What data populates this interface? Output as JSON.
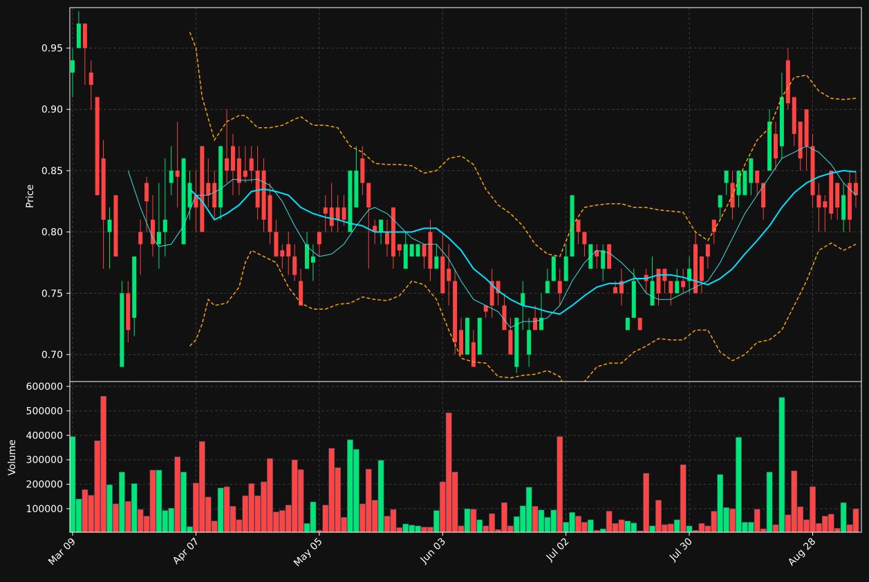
{
  "chart_data": {
    "type": "candlestick",
    "ylabel": "Price",
    "volume_ylabel": "Volume",
    "grid": true,
    "up_color": "#00e676",
    "down_color": "#ff4444",
    "xlim": [
      -0.45,
      127.9
    ],
    "ylim": [
      0.678,
      0.983
    ],
    "yticks": [
      {
        "value": 0.7,
        "label": "0.70"
      },
      0.75,
      {
        "value": 0.8,
        "label": "0.80"
      },
      0.85,
      {
        "value": 0.9,
        "label": "0.90"
      },
      0.95
    ],
    "volume_ylim": [
      4000,
      617000
    ],
    "volume_yticks": [
      100000,
      200000,
      300000,
      400000,
      500000,
      600000
    ],
    "categories": [
      "Mar 09",
      null,
      null,
      null,
      null,
      null,
      null,
      null,
      null,
      null,
      null,
      null,
      null,
      null,
      null,
      null,
      null,
      null,
      null,
      null,
      "Apr 07",
      null,
      null,
      null,
      null,
      null,
      null,
      null,
      null,
      null,
      null,
      null,
      null,
      null,
      null,
      null,
      null,
      null,
      null,
      null,
      "May 05",
      null,
      null,
      null,
      null,
      null,
      null,
      null,
      null,
      null,
      null,
      null,
      null,
      null,
      null,
      null,
      null,
      null,
      null,
      null,
      "Jun 03",
      null,
      null,
      null,
      null,
      null,
      null,
      null,
      null,
      null,
      null,
      null,
      null,
      null,
      null,
      null,
      null,
      null,
      null,
      null,
      "Jul 02",
      null,
      null,
      null,
      null,
      null,
      null,
      null,
      null,
      null,
      null,
      null,
      null,
      null,
      null,
      null,
      null,
      null,
      null,
      null,
      "Jul 30",
      null,
      null,
      null,
      null,
      null,
      null,
      null,
      null,
      null,
      null,
      null,
      null,
      null,
      null,
      null,
      null,
      null,
      null,
      null,
      "Aug 28",
      null,
      null,
      null,
      null,
      null,
      null,
      null
    ],
    "open": [
      0.93,
      0.95,
      0.97,
      0.93,
      0.91,
      0.86,
      0.8,
      0.83,
      0.69,
      0.75,
      0.73,
      0.8,
      0.84,
      0.81,
      0.79,
      0.8,
      0.84,
      0.85,
      0.79,
      0.82,
      0.83,
      0.87,
      0.84,
      0.84,
      0.82,
      0.86,
      0.87,
      0.86,
      0.85,
      0.86,
      0.85,
      0.85,
      0.83,
      0.8,
      0.785,
      0.79,
      0.78,
      0.76,
      0.77,
      0.775,
      0.8,
      0.82,
      0.82,
      0.82,
      0.82,
      0.8,
      0.82,
      0.86,
      0.84,
      0.805,
      0.8,
      0.8,
      0.82,
      0.79,
      0.77,
      0.78,
      0.78,
      0.79,
      0.8,
      0.77,
      0.78,
      0.77,
      0.76,
      0.72,
      0.7,
      0.71,
      0.7,
      0.74,
      0.76,
      0.76,
      0.74,
      0.72,
      0.69,
      0.74,
      0.7,
      0.73,
      0.72,
      0.75,
      0.76,
      0.76,
      0.76,
      0.78,
      0.81,
      0.8,
      0.77,
      0.785,
      0.77,
      0.79,
      0.755,
      0.76,
      0.72,
      0.73,
      0.73,
      0.765,
      0.74,
      0.77,
      0.77,
      0.76,
      0.75,
      0.76,
      0.76,
      0.79,
      0.78,
      0.79,
      0.81,
      0.82,
      0.84,
      0.84,
      0.83,
      0.83,
      0.84,
      0.85,
      0.84,
      0.85,
      0.88,
      0.87,
      0.94,
      0.91,
      0.89,
      0.9,
      0.87,
      0.83,
      0.825,
      0.85,
      0.84,
      0.81,
      0.84,
      0.84
    ],
    "high": [
      0.95,
      0.98,
      0.97,
      0.94,
      0.91,
      0.875,
      0.82,
      0.83,
      0.76,
      0.76,
      0.78,
      0.81,
      0.845,
      0.83,
      0.84,
      0.86,
      0.87,
      0.89,
      0.86,
      0.85,
      0.85,
      0.87,
      0.86,
      0.85,
      0.87,
      0.9,
      0.88,
      0.87,
      0.87,
      0.87,
      0.87,
      0.86,
      0.84,
      0.81,
      0.79,
      0.8,
      0.79,
      0.77,
      0.8,
      0.79,
      0.8,
      0.83,
      0.84,
      0.83,
      0.83,
      0.85,
      0.87,
      0.87,
      0.84,
      0.81,
      0.81,
      0.81,
      0.82,
      0.79,
      0.8,
      0.79,
      0.79,
      0.79,
      0.81,
      0.79,
      0.8,
      0.79,
      0.77,
      0.73,
      0.73,
      0.72,
      0.73,
      0.74,
      0.77,
      0.76,
      0.75,
      0.73,
      0.73,
      0.76,
      0.73,
      0.74,
      0.75,
      0.77,
      0.78,
      0.77,
      0.79,
      0.83,
      0.81,
      0.8,
      0.79,
      0.79,
      0.79,
      0.79,
      0.76,
      0.77,
      0.73,
      0.77,
      0.73,
      0.77,
      0.78,
      0.77,
      0.77,
      0.76,
      0.77,
      0.77,
      0.78,
      0.8,
      0.78,
      0.79,
      0.81,
      0.83,
      0.85,
      0.85,
      0.85,
      0.85,
      0.86,
      0.85,
      0.84,
      0.9,
      0.89,
      0.93,
      0.95,
      0.91,
      0.89,
      0.9,
      0.88,
      0.84,
      0.83,
      0.85,
      0.84,
      0.84,
      0.85,
      0.85
    ],
    "low": [
      0.91,
      0.95,
      0.92,
      0.9,
      0.83,
      0.77,
      0.77,
      0.78,
      0.69,
      0.71,
      0.715,
      0.765,
      0.8,
      0.78,
      0.77,
      0.78,
      0.83,
      0.82,
      0.79,
      0.81,
      0.8,
      0.8,
      0.82,
      0.81,
      0.81,
      0.84,
      0.83,
      0.83,
      0.84,
      0.84,
      0.81,
      0.8,
      0.79,
      0.78,
      0.77,
      0.765,
      0.76,
      0.74,
      0.77,
      0.76,
      0.78,
      0.8,
      0.8,
      0.8,
      0.805,
      0.8,
      0.82,
      0.83,
      0.77,
      0.79,
      0.79,
      0.78,
      0.77,
      0.78,
      0.77,
      0.78,
      0.78,
      0.77,
      0.76,
      0.77,
      0.75,
      0.74,
      0.7,
      0.7,
      0.7,
      0.69,
      0.7,
      0.73,
      0.73,
      0.74,
      0.72,
      0.7,
      0.685,
      0.72,
      0.69,
      0.72,
      0.72,
      0.75,
      0.76,
      0.74,
      0.76,
      0.78,
      0.79,
      0.78,
      0.77,
      0.77,
      0.76,
      0.77,
      0.75,
      0.74,
      0.72,
      0.73,
      0.72,
      0.75,
      0.74,
      0.74,
      0.75,
      0.74,
      0.75,
      0.75,
      0.75,
      0.75,
      0.75,
      0.77,
      0.79,
      0.81,
      0.83,
      0.81,
      0.82,
      0.83,
      0.83,
      0.83,
      0.81,
      0.85,
      0.85,
      0.86,
      0.9,
      0.87,
      0.85,
      0.85,
      0.82,
      0.8,
      0.8,
      0.81,
      0.81,
      0.8,
      0.8,
      0.82
    ],
    "close": [
      0.94,
      0.97,
      0.95,
      0.92,
      0.83,
      0.81,
      0.81,
      0.78,
      0.75,
      0.72,
      0.78,
      0.79,
      0.825,
      0.79,
      0.8,
      0.81,
      0.85,
      0.845,
      0.86,
      0.84,
      0.82,
      0.8,
      0.83,
      0.82,
      0.87,
      0.85,
      0.85,
      0.84,
      0.845,
      0.85,
      0.82,
      0.81,
      0.8,
      0.78,
      0.78,
      0.78,
      0.765,
      0.74,
      0.79,
      0.78,
      0.79,
      0.815,
      0.805,
      0.81,
      0.81,
      0.85,
      0.85,
      0.84,
      0.82,
      0.8,
      0.81,
      0.79,
      0.78,
      0.785,
      0.79,
      0.79,
      0.79,
      0.78,
      0.77,
      0.78,
      0.75,
      0.76,
      0.71,
      0.7,
      0.73,
      0.69,
      0.73,
      0.735,
      0.74,
      0.75,
      0.72,
      0.7,
      0.73,
      0.75,
      0.72,
      0.72,
      0.73,
      0.76,
      0.78,
      0.75,
      0.78,
      0.83,
      0.8,
      0.79,
      0.79,
      0.78,
      0.785,
      0.77,
      0.75,
      0.75,
      0.73,
      0.76,
      0.72,
      0.76,
      0.76,
      0.75,
      0.76,
      0.75,
      0.76,
      0.755,
      0.77,
      0.75,
      0.76,
      0.78,
      0.8,
      0.83,
      0.85,
      0.82,
      0.85,
      0.85,
      0.86,
      0.84,
      0.82,
      0.89,
      0.86,
      0.91,
      0.905,
      0.88,
      0.86,
      0.87,
      0.83,
      0.82,
      0.82,
      0.815,
      0.82,
      0.83,
      0.81,
      0.83
    ],
    "volume": [
      395000,
      140000,
      178000,
      155000,
      378000,
      560000,
      198000,
      120000,
      250000,
      130000,
      203000,
      97000,
      70000,
      258000,
      258000,
      93000,
      102000,
      312000,
      250000,
      27000,
      205000,
      375000,
      148000,
      50000,
      185000,
      190000,
      110000,
      55000,
      153000,
      203000,
      153000,
      210000,
      305000,
      87000,
      93000,
      115000,
      300000,
      260000,
      40000,
      128000,
      12000,
      115000,
      347000,
      268000,
      65000,
      382000,
      343000,
      120000,
      262000,
      135000,
      298000,
      70000,
      97000,
      23000,
      38000,
      33000,
      30000,
      25000,
      25000,
      93000,
      210000,
      492000,
      250000,
      30000,
      100000,
      98000,
      55000,
      30000,
      80000,
      15000,
      125000,
      30000,
      68000,
      112000,
      188000,
      110000,
      95000,
      65000,
      95000,
      395000,
      45000,
      85000,
      70000,
      45000,
      55000,
      12000,
      18000,
      90000,
      40000,
      55000,
      50000,
      42000,
      10000,
      245000,
      30000,
      135000,
      35000,
      38000,
      55000,
      280000,
      30000,
      12000,
      40000,
      30000,
      90000,
      240000,
      105000,
      100000,
      392000,
      45000,
      45000,
      98000,
      18000,
      250000,
      35000,
      555000,
      75000,
      255000,
      108000,
      55000,
      190000,
      40000,
      70000,
      78000,
      20000,
      125000,
      35000,
      100000
    ],
    "lines": [
      {
        "color": "#40e0e0",
        "linewidth": 1,
        "dashed": false,
        "x": [
          9,
          11,
          13,
          14,
          16,
          18,
          20,
          22,
          24,
          26,
          28,
          30,
          32,
          34,
          36,
          38,
          40,
          42,
          44,
          46,
          48,
          49,
          51,
          53,
          55,
          57,
          59,
          61,
          63,
          65,
          67,
          69,
          71,
          73,
          75,
          77,
          79,
          81,
          83,
          85,
          87,
          89,
          91,
          93,
          95,
          97,
          99,
          101,
          103,
          105,
          107,
          109,
          111,
          113,
          115,
          117,
          119,
          121,
          123,
          125,
          127
        ],
        "values": [
          0.85,
          0.82,
          0.795,
          0.788,
          0.79,
          0.805,
          0.83,
          0.83,
          0.835,
          0.843,
          0.842,
          0.843,
          0.838,
          0.825,
          0.805,
          0.788,
          0.78,
          0.782,
          0.79,
          0.805,
          0.818,
          0.82,
          0.815,
          0.805,
          0.795,
          0.79,
          0.79,
          0.778,
          0.76,
          0.745,
          0.74,
          0.735,
          0.722,
          0.727,
          0.727,
          0.73,
          0.74,
          0.76,
          0.775,
          0.785,
          0.783,
          0.775,
          0.765,
          0.75,
          0.745,
          0.745,
          0.75,
          0.755,
          0.76,
          0.775,
          0.795,
          0.815,
          0.83,
          0.845,
          0.86,
          0.865,
          0.87,
          0.865,
          0.855,
          0.84,
          0.83
        ]
      },
      {
        "color": "#00e5ff",
        "linewidth": 2,
        "dashed": false,
        "x": [
          19,
          21,
          23,
          25,
          27,
          29,
          31,
          33,
          35,
          37,
          39,
          41,
          43,
          45,
          47,
          49,
          51,
          53,
          55,
          57,
          59,
          61,
          63,
          65,
          67,
          69,
          71,
          73,
          75,
          77,
          79,
          81,
          83,
          85,
          87,
          89,
          91,
          93,
          95,
          97,
          99,
          101,
          103,
          105,
          107,
          109,
          111,
          113,
          115,
          117,
          119,
          121,
          123,
          125,
          127
        ],
        "values": [
          0.835,
          0.825,
          0.81,
          0.815,
          0.822,
          0.833,
          0.835,
          0.833,
          0.83,
          0.82,
          0.815,
          0.812,
          0.81,
          0.807,
          0.805,
          0.8,
          0.8,
          0.8,
          0.8,
          0.803,
          0.803,
          0.795,
          0.785,
          0.77,
          0.762,
          0.752,
          0.745,
          0.74,
          0.738,
          0.735,
          0.733,
          0.74,
          0.748,
          0.755,
          0.758,
          0.758,
          0.762,
          0.762,
          0.765,
          0.765,
          0.763,
          0.76,
          0.757,
          0.762,
          0.77,
          0.782,
          0.793,
          0.805,
          0.82,
          0.832,
          0.84,
          0.845,
          0.848,
          0.85,
          0.849
        ]
      },
      {
        "color": "#ffa500",
        "linewidth": 1.5,
        "dashed": true,
        "x": [
          19,
          20,
          21,
          23,
          25,
          27,
          28,
          30,
          32,
          34,
          36,
          37,
          39,
          41,
          43,
          45,
          47,
          49,
          51,
          53,
          55,
          57,
          59,
          61,
          63,
          65,
          67,
          69,
          71,
          73,
          75,
          77,
          79,
          81,
          83,
          85,
          87,
          89,
          91,
          93,
          95,
          97,
          99,
          101,
          103,
          105,
          107,
          109,
          111,
          113,
          115,
          117,
          119,
          121,
          123,
          125,
          127
        ],
        "values": [
          0.963,
          0.95,
          0.91,
          0.875,
          0.89,
          0.895,
          0.895,
          0.885,
          0.885,
          0.887,
          0.892,
          0.894,
          0.887,
          0.887,
          0.885,
          0.87,
          0.865,
          0.856,
          0.855,
          0.855,
          0.854,
          0.848,
          0.85,
          0.86,
          0.862,
          0.855,
          0.835,
          0.822,
          0.815,
          0.805,
          0.79,
          0.782,
          0.78,
          0.805,
          0.82,
          0.822,
          0.823,
          0.823,
          0.82,
          0.82,
          0.818,
          0.817,
          0.816,
          0.8,
          0.793,
          0.81,
          0.83,
          0.855,
          0.875,
          0.885,
          0.91,
          0.926,
          0.928,
          0.915,
          0.909,
          0.908,
          0.909
        ]
      },
      {
        "color": "#ffa500",
        "linewidth": 1.5,
        "dashed": true,
        "x": [
          19,
          20,
          21,
          22,
          23,
          25,
          27,
          28,
          29,
          31,
          33,
          35,
          37,
          39,
          41,
          43,
          45,
          47,
          49,
          51,
          53,
          55,
          57,
          59,
          61,
          63,
          65,
          67,
          69,
          71,
          73,
          75,
          77,
          79,
          80,
          81,
          83,
          85,
          87,
          89,
          91,
          93,
          95,
          97,
          99,
          101,
          103,
          105,
          107,
          109,
          111,
          113,
          115,
          117,
          119,
          121,
          123,
          125,
          127
        ],
        "values": [
          0.707,
          0.712,
          0.725,
          0.745,
          0.74,
          0.742,
          0.755,
          0.775,
          0.785,
          0.78,
          0.775,
          0.755,
          0.742,
          0.737,
          0.737,
          0.741,
          0.742,
          0.747,
          0.745,
          0.744,
          0.748,
          0.76,
          0.757,
          0.745,
          0.72,
          0.697,
          0.694,
          0.693,
          0.682,
          0.681,
          0.683,
          0.684,
          0.687,
          0.682,
          0.67,
          0.67,
          0.678,
          0.69,
          0.693,
          0.693,
          0.702,
          0.707,
          0.713,
          0.712,
          0.712,
          0.72,
          0.72,
          0.702,
          0.695,
          0.7,
          0.71,
          0.712,
          0.72,
          0.74,
          0.76,
          0.785,
          0.791,
          0.785,
          0.79
        ]
      }
    ]
  }
}
